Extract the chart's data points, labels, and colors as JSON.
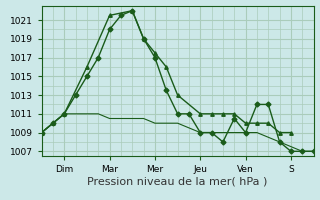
{
  "title": "",
  "xlabel": "Pression niveau de la mer( hPa )",
  "ylabel": "",
  "bg_color": "#cce8e8",
  "grid_color": "#aaccbb",
  "line_color": "#1a5c1a",
  "ylim": [
    1006.5,
    1022.5
  ],
  "yticks": [
    1007,
    1009,
    1011,
    1013,
    1015,
    1017,
    1019,
    1021
  ],
  "day_labels": [
    "Dim",
    "Mar",
    "Mer",
    "Jeu",
    "Ven",
    "S"
  ],
  "day_positions": [
    24,
    72,
    120,
    168,
    216,
    264
  ],
  "xlim": [
    0,
    288
  ],
  "series": [
    {
      "x": [
        0,
        12,
        24,
        36,
        48,
        60,
        72,
        84,
        96,
        108,
        120,
        132,
        144,
        156,
        168,
        180,
        192,
        204,
        216,
        228,
        240,
        252,
        264,
        276,
        288
      ],
      "y": [
        1009,
        1010,
        1011,
        1013,
        1015,
        1017,
        1020,
        1021.5,
        1022,
        1019,
        1017,
        1013.5,
        1011,
        1011,
        1009,
        1009,
        1008,
        1010.5,
        1009,
        1012,
        1012,
        1008,
        1007,
        1007,
        1007
      ],
      "marker": "D",
      "markersize": 2.5,
      "linewidth": 1.0
    },
    {
      "x": [
        0,
        12,
        24,
        36,
        48,
        60,
        72,
        84,
        96,
        108,
        120,
        132,
        144,
        156,
        168,
        180,
        192,
        204,
        216,
        228,
        240,
        252,
        264,
        276,
        288
      ],
      "y": [
        1009,
        1010,
        1011,
        1011,
        1011,
        1011,
        1010.5,
        1010.5,
        1010.5,
        1010.5,
        1010,
        1010,
        1010,
        1009.5,
        1009,
        1009,
        1009,
        1009,
        1009,
        1009,
        1008.5,
        1008,
        1007.5,
        1007,
        1007
      ],
      "marker": null,
      "markersize": 0,
      "linewidth": 0.8
    },
    {
      "x": [
        0,
        12,
        24,
        48,
        72,
        96,
        108,
        120,
        132,
        144,
        168,
        180,
        192,
        204,
        216,
        228,
        240,
        252,
        264
      ],
      "y": [
        1009,
        1010,
        1011,
        1016,
        1021.5,
        1022,
        1019,
        1017.5,
        1016,
        1013,
        1011,
        1011,
        1011,
        1011,
        1010,
        1010,
        1010,
        1009,
        1009
      ],
      "marker": "^",
      "markersize": 2.5,
      "linewidth": 1.0
    }
  ],
  "xlabel_fontsize": 8,
  "tick_fontsize": 6.5
}
